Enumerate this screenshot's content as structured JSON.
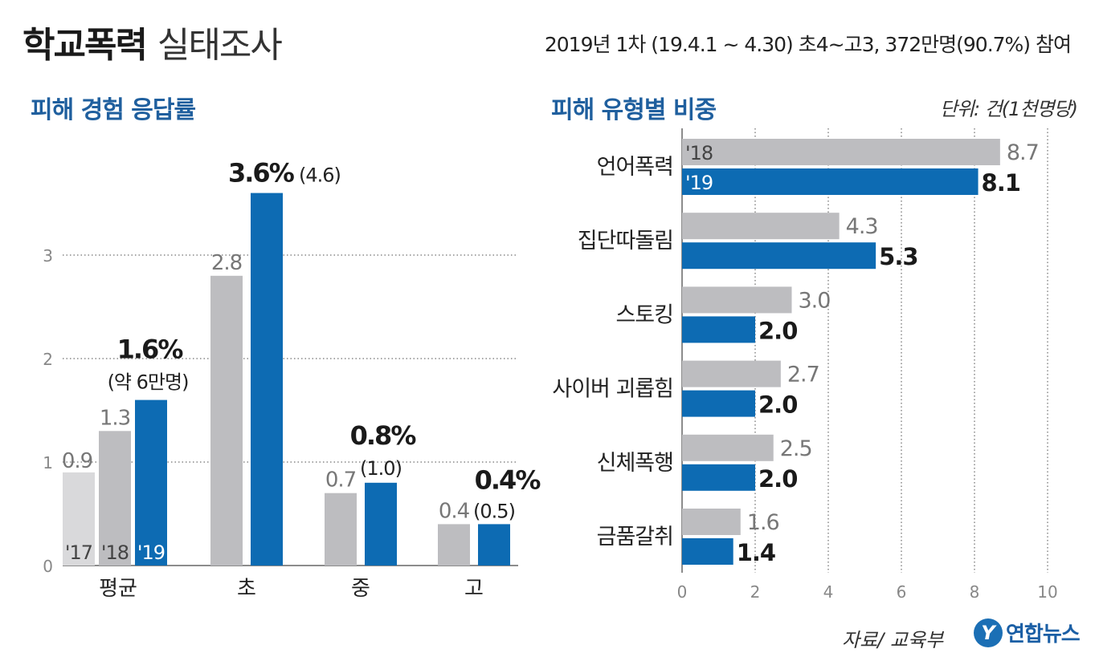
{
  "header": {
    "title_bold": "학교폭력",
    "title_light": "실태조사",
    "subtitle": "2019년 1차 (19.4.1 ~ 4.30) 초4~고3, 372만명(90.7%) 참여"
  },
  "colors": {
    "gray_light": "#d9d9db",
    "gray": "#bdbdc0",
    "blue": "#0d6bb3",
    "axis": "#555555",
    "grid": "#888888",
    "section": "#1f5f9e"
  },
  "chart_data": [
    {
      "type": "bar",
      "title": "피해 경험 응답률",
      "categories": [
        "평균",
        "초",
        "중",
        "고"
      ],
      "series": [
        {
          "name": "'17",
          "values": [
            0.9,
            null,
            null,
            null
          ]
        },
        {
          "name": "'18",
          "values": [
            1.3,
            2.8,
            0.7,
            0.4
          ]
        },
        {
          "name": "'19",
          "values": [
            1.6,
            3.6,
            0.8,
            0.4
          ]
        }
      ],
      "labels": {
        "series": [
          "'17",
          "'18",
          "'19"
        ],
        "y2017": [
          "0.9"
        ],
        "y2018": [
          "1.3",
          "2.8",
          "0.7",
          "0.4"
        ],
        "y2019": [
          "1.6%",
          "3.6%",
          "0.8%",
          "0.4%"
        ],
        "y2019_extra": [
          "(약 6만명)",
          "(4.6)",
          "(1.0)",
          "(0.5)"
        ]
      },
      "ylim": [
        0,
        3.6
      ],
      "yticks": [
        0,
        1,
        2,
        3
      ],
      "ytick_labels": [
        "0",
        "1",
        "2",
        "3"
      ],
      "grid": true
    },
    {
      "type": "bar",
      "orientation": "horizontal",
      "title": "피해 유형별 비중",
      "unit": "단위: 건(1천명당)",
      "categories": [
        "언어폭력",
        "집단따돌림",
        "스토킹",
        "사이버 괴롭힘",
        "신체폭행",
        "금품갈취"
      ],
      "series": [
        {
          "name": "'18",
          "values": [
            8.7,
            4.3,
            3.0,
            2.7,
            2.5,
            1.6
          ]
        },
        {
          "name": "'19",
          "values": [
            8.1,
            5.3,
            2.0,
            2.0,
            2.0,
            1.4
          ]
        }
      ],
      "labels": {
        "series": [
          "'18",
          "'19"
        ],
        "y2018": [
          "8.7",
          "4.3",
          "3.0",
          "2.7",
          "2.5",
          "1.6"
        ],
        "y2019": [
          "8.1",
          "5.3",
          "2.0",
          "2.0",
          "2.0",
          "1.4"
        ]
      },
      "xlim": [
        0,
        10
      ],
      "xticks": [
        0,
        2,
        4,
        6,
        8,
        10
      ],
      "xtick_labels": [
        "0",
        "2",
        "4",
        "6",
        "8",
        "10"
      ],
      "grid": true
    }
  ],
  "footer": {
    "source": "자료/ 교육부",
    "logo_mark": "Y",
    "logo_text": "연합뉴스"
  }
}
